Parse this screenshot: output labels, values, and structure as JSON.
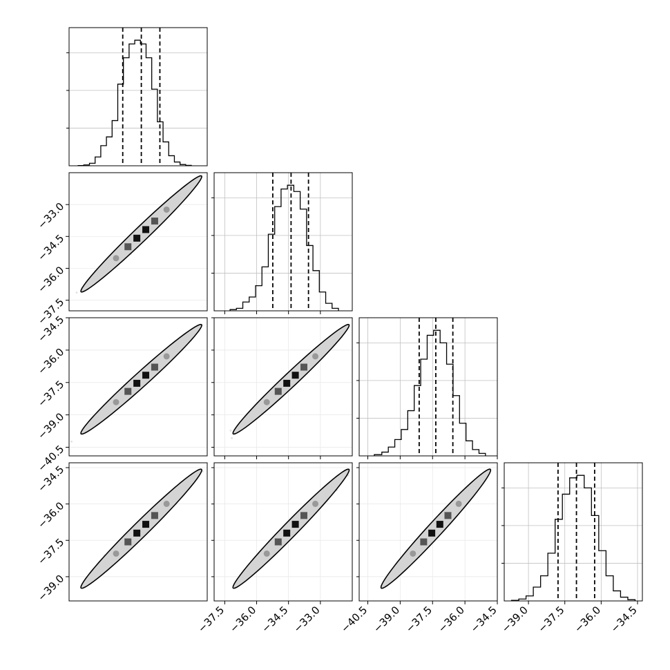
{
  "chart_data": {
    "type": "corner",
    "n_params": 4,
    "quantile_lines": "dashed",
    "grid": true,
    "params": [
      {
        "range": [
          -40.0,
          -33.9
        ],
        "ticks": [],
        "quantiles": [
          -37.63,
          -36.81,
          -35.99
        ],
        "hist": {
          "edges": [
            -39.6,
            -39.35,
            -39.1,
            -38.85,
            -38.6,
            -38.35,
            -38.1,
            -37.85,
            -37.6,
            -37.35,
            -37.1,
            -36.85,
            -36.6,
            -36.35,
            -36.1,
            -35.85,
            -35.6,
            -35.35,
            -35.1,
            -34.85,
            -34.6
          ],
          "counts": [
            0.002,
            0.007,
            0.02,
            0.07,
            0.16,
            0.23,
            0.36,
            0.65,
            0.86,
            0.97,
            1.0,
            0.97,
            0.86,
            0.61,
            0.35,
            0.19,
            0.08,
            0.03,
            0.01,
            0.003
          ]
        }
      },
      {
        "range": [
          -38.0,
          -31.5
        ],
        "ticks": [
          -37.5,
          -36.0,
          -34.5,
          -33.0
        ],
        "tick_labels": [
          "−37.5",
          "−36.0",
          "−34.5",
          "−33.0"
        ],
        "quantiles": [
          -35.24,
          -34.38,
          -33.56
        ],
        "hist": {
          "edges": [
            -37.25,
            -36.95,
            -36.65,
            -36.35,
            -36.05,
            -35.75,
            -35.45,
            -35.15,
            -34.85,
            -34.55,
            -34.25,
            -33.95,
            -33.65,
            -33.35,
            -33.05,
            -32.75,
            -32.45,
            -32.15
          ],
          "counts": [
            0.01,
            0.02,
            0.07,
            0.11,
            0.2,
            0.35,
            0.61,
            0.83,
            0.97,
            1.0,
            0.95,
            0.81,
            0.52,
            0.32,
            0.15,
            0.06,
            0.02
          ]
        }
      },
      {
        "range": [
          -40.9,
          -34.5
        ],
        "ticks": [
          -40.5,
          -39.0,
          -37.5,
          -36.0,
          -34.5
        ],
        "tick_labels": [
          "−40.5",
          "−39.0",
          "−37.5",
          "−36.0",
          "−34.5"
        ],
        "quantiles": [
          -38.12,
          -37.35,
          -36.56
        ],
        "hist": {
          "edges": [
            -40.2,
            -39.85,
            -39.55,
            -39.25,
            -38.95,
            -38.65,
            -38.35,
            -38.05,
            -37.75,
            -37.45,
            -37.15,
            -36.85,
            -36.55,
            -36.25,
            -35.95,
            -35.65,
            -35.35,
            -35.05
          ],
          "counts": [
            0.01,
            0.03,
            0.07,
            0.13,
            0.21,
            0.36,
            0.56,
            0.77,
            0.96,
            1.0,
            0.9,
            0.73,
            0.48,
            0.26,
            0.12,
            0.05,
            0.02
          ]
        }
      },
      {
        "range": [
          -40.0,
          -34.3
        ],
        "ticks": [
          -39.0,
          -37.5,
          -36.0,
          -34.5
        ],
        "tick_labels": [
          "−39.0",
          "−37.5",
          "−36.0",
          "−34.5"
        ],
        "quantiles": [
          -37.78,
          -37.02,
          -36.27
        ],
        "hist": {
          "edges": [
            -39.7,
            -39.4,
            -39.1,
            -38.8,
            -38.5,
            -38.2,
            -37.9,
            -37.6,
            -37.3,
            -37.0,
            -36.7,
            -36.4,
            -36.1,
            -35.8,
            -35.5,
            -35.2,
            -34.9,
            -34.6
          ],
          "counts": [
            0.005,
            0.015,
            0.04,
            0.11,
            0.2,
            0.38,
            0.65,
            0.85,
            0.98,
            1.0,
            0.9,
            0.68,
            0.4,
            0.2,
            0.08,
            0.03,
            0.01
          ]
        }
      }
    ],
    "correlation": 0.99
  }
}
